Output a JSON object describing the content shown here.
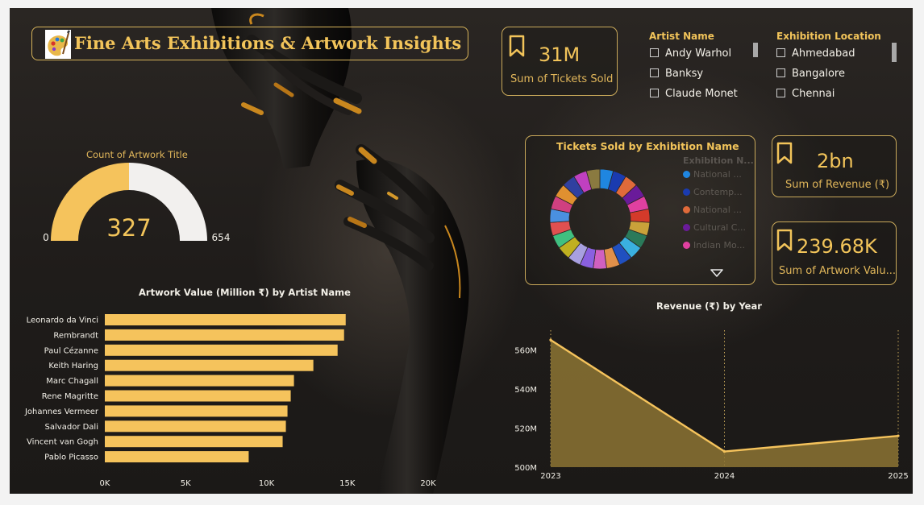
{
  "header": {
    "title": "Fine Arts Exhibitions & Artwork Insights"
  },
  "kpis": {
    "tickets": {
      "value": "31M",
      "label": "Sum of Tickets Sold"
    },
    "revenue": {
      "value": "2bn",
      "label": "Sum of Revenue (₹)"
    },
    "artwork_value": {
      "value": "239.68K",
      "label": "Sum of Artwork Valu..."
    }
  },
  "slicers": {
    "artist": {
      "title": "Artist Name",
      "items": [
        "Andy Warhol",
        "Banksy",
        "Claude Monet"
      ]
    },
    "location": {
      "title": "Exhibition Location",
      "items": [
        "Ahmedabad",
        "Bangalore",
        "Chennai"
      ]
    }
  },
  "colors": {
    "accent": "#f2c45a",
    "bar": "#f5c35c",
    "gauge_track": "#f2f0ee",
    "border": "#c9a95a"
  },
  "chart_data": [
    {
      "type": "gauge",
      "title": "Count of Artwork Title",
      "value": 327,
      "min": 0,
      "max": 654,
      "value_label": "327",
      "min_label": "0",
      "max_label": "654"
    },
    {
      "type": "bar",
      "orientation": "horizontal",
      "title": "Artwork Value (Million ₹) by Artist Name",
      "categories": [
        "Leonardo da Vinci",
        "Rembrandt",
        "Paul Cézanne",
        "Keith Haring",
        "Marc Chagall",
        "Rene Magritte",
        "Johannes Vermeer",
        "Salvador Dali",
        "Vincent van Gogh",
        "Pablo Picasso"
      ],
      "values": [
        14900,
        14800,
        14400,
        12900,
        11700,
        11500,
        11300,
        11200,
        11000,
        8900
      ],
      "xlim": [
        0,
        20000
      ],
      "xticks": [
        0,
        5000,
        10000,
        15000,
        20000
      ],
      "xtick_labels": [
        "0K",
        "5K",
        "10K",
        "15K",
        "20K"
      ],
      "grid": false
    },
    {
      "type": "pie",
      "donut": true,
      "title": "Tickets Sold by Exhibition Name",
      "legend": {
        "title": "Exhibition N...",
        "position": "right",
        "entries": [
          "National ...",
          "Contemp...",
          "National ...",
          "Cultural C...",
          "Indian Mo..."
        ],
        "colors": [
          "#1f86e0",
          "#1a3bb0",
          "#e06a3a",
          "#6a1b9a",
          "#e040a0"
        ]
      },
      "slice_colors": [
        "#1f86e0",
        "#1a3bb0",
        "#e06a3a",
        "#6a1b9a",
        "#e040a0",
        "#d43a2a",
        "#c9a13a",
        "#2a7a5a",
        "#3ab0e0",
        "#2050c0",
        "#e0904a",
        "#d060c0",
        "#8a60e0",
        "#a8a0e0",
        "#c0b020",
        "#40c080",
        "#e05050",
        "#4a90e0",
        "#d04080",
        "#e09030",
        "#3040a0",
        "#c040c0",
        "#8a7a40"
      ],
      "slice_values": [
        1,
        1,
        1,
        1,
        1,
        1,
        1,
        1,
        1,
        1,
        1,
        1,
        1,
        1,
        1,
        1,
        1,
        1,
        1,
        1,
        1,
        1,
        1
      ]
    },
    {
      "type": "area",
      "title": "Revenue (₹) by Year",
      "x": [
        "2023",
        "2024",
        "2025"
      ],
      "values": [
        565,
        508,
        516
      ],
      "unit": "M",
      "ylim": [
        500,
        570
      ],
      "yticks": [
        500,
        520,
        540,
        560
      ],
      "ytick_labels": [
        "500M",
        "520M",
        "540M",
        "560M"
      ],
      "grid": "vertical dotted"
    }
  ]
}
